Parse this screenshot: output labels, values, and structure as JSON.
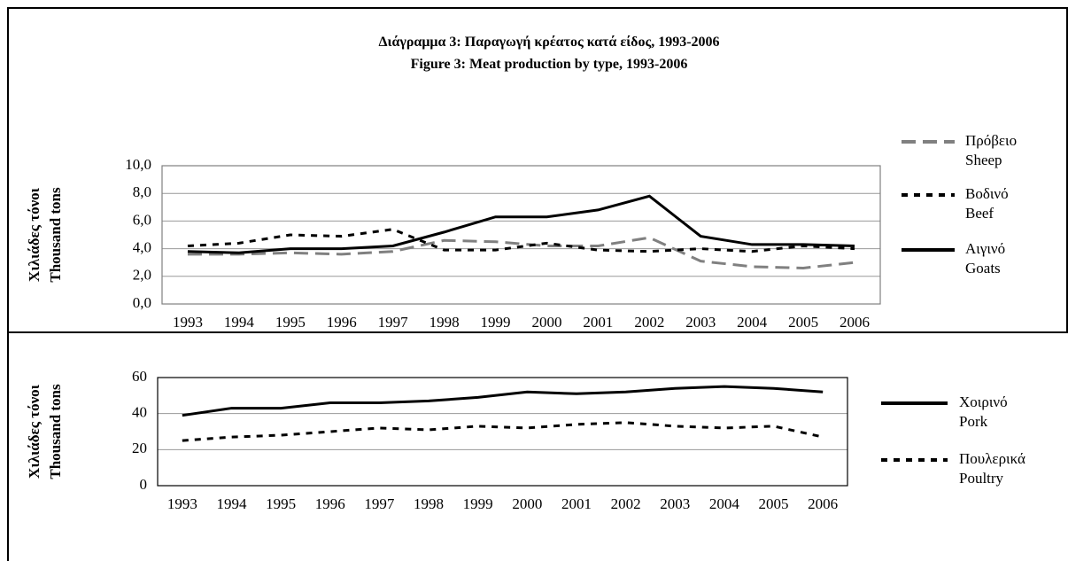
{
  "chart_data": [
    {
      "type": "line",
      "title": "Διάγραμμα  3:  Παραγωγή κρέατος κατά είδος,  1993-2006\nFigure        3:   Meat production by type,  1993-2006",
      "y_label": "Χιλιάδες τόνοι\nThousand tons",
      "categories": [
        "1993",
        "1994",
        "1995",
        "1996",
        "1997",
        "1998",
        "1999",
        "2000",
        "2001",
        "2002",
        "2003",
        "2004",
        "2005",
        "2006"
      ],
      "series": [
        {
          "name": "Πρόβειο\nSheep",
          "color": "#808080",
          "dash": "dashed",
          "values": [
            3.6,
            3.6,
            3.7,
            3.6,
            3.8,
            4.6,
            4.5,
            4.2,
            4.2,
            4.8,
            3.1,
            2.7,
            2.6,
            3.0
          ]
        },
        {
          "name": "Βοδινό\nBeef",
          "color": "#000000",
          "dash": "dotted",
          "values": [
            4.2,
            4.4,
            5.0,
            4.9,
            5.4,
            3.9,
            3.9,
            4.4,
            3.9,
            3.8,
            4.0,
            3.8,
            4.2,
            4.0
          ]
        },
        {
          "name": "Αιγινό\nGoats",
          "color": "#000000",
          "dash": "solid",
          "values": [
            3.8,
            3.7,
            4.0,
            4.0,
            4.2,
            5.2,
            6.3,
            6.3,
            6.8,
            7.8,
            4.9,
            4.3,
            4.3,
            4.2
          ]
        }
      ],
      "ylim": [
        0,
        10
      ],
      "yticks": [
        {
          "value": 0,
          "label": "0,0"
        },
        {
          "value": 2,
          "label": "2,0"
        },
        {
          "value": 4,
          "label": "4,0"
        },
        {
          "value": 6,
          "label": "6,0"
        },
        {
          "value": 8,
          "label": "8,0"
        },
        {
          "value": 10,
          "label": "10,0"
        }
      ],
      "grid": true,
      "legend": "right"
    },
    {
      "type": "line",
      "y_label": "Χιλιάδες τόνοι\nThousand tons",
      "categories": [
        "1993",
        "1994",
        "1995",
        "1996",
        "1997",
        "1998",
        "1999",
        "2000",
        "2001",
        "2002",
        "2003",
        "2004",
        "2005",
        "2006"
      ],
      "series": [
        {
          "name": "Χοιρινό\nPork",
          "color": "#000000",
          "dash": "solid",
          "values": [
            39,
            43,
            43,
            46,
            46,
            47,
            49,
            52,
            51,
            52,
            54,
            55,
            54,
            52
          ]
        },
        {
          "name": "Πουλερικά\nPoultry",
          "color": "#000000",
          "dash": "dotted",
          "values": [
            25,
            27,
            28,
            30,
            32,
            31,
            33,
            32,
            34,
            35,
            33,
            32,
            33,
            27
          ]
        }
      ],
      "ylim": [
        0,
        60
      ],
      "yticks": [
        0,
        20,
        40,
        60
      ],
      "grid": true,
      "legend": "right"
    }
  ]
}
